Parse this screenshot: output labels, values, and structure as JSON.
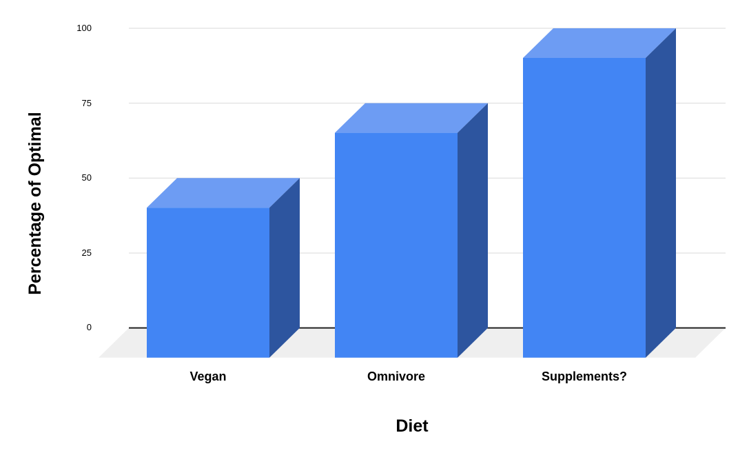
{
  "chart_data": {
    "type": "bar",
    "style": "3d-column",
    "title": "",
    "xlabel": "Diet",
    "ylabel": "Percentage of Optimal",
    "categories": [
      "Vegan",
      "Omnivore",
      "Supplements?"
    ],
    "values": [
      50,
      75,
      100
    ],
    "series": [
      {
        "name": "Percentage of Optimal",
        "values": [
          50,
          75,
          100
        ]
      }
    ],
    "ylim": [
      0,
      100
    ],
    "yticks": [
      0,
      25,
      50,
      75,
      100
    ],
    "ytick_labels_top_to_bottom": [
      "100",
      "75",
      "50",
      "25",
      "0"
    ],
    "grid": true,
    "legend": false,
    "colors": {
      "bar_front": "#4285F4",
      "bar_top": "#6D9CF3",
      "bar_side": "#2D559F",
      "floor": "#EFEFEF",
      "gridline": "#D9D9D9",
      "baseline": "#212121",
      "text": "#000000",
      "background": "#FFFFFF"
    }
  }
}
